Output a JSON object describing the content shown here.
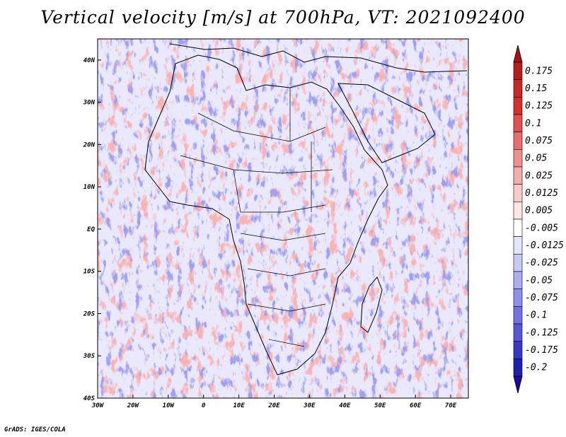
{
  "title": "Vertical velocity [m/s] at 700hPa, VT: 2021092400",
  "credit": "GrADS: IGES/COLA",
  "map": {
    "lon_range": [
      -30,
      75
    ],
    "lat_range": [
      -40,
      45
    ],
    "lon_ticks": [
      {
        "lon": -30,
        "label": "30W"
      },
      {
        "lon": -20,
        "label": "20W"
      },
      {
        "lon": -10,
        "label": "10W"
      },
      {
        "lon": 0,
        "label": "0"
      },
      {
        "lon": 10,
        "label": "10E"
      },
      {
        "lon": 20,
        "label": "20E"
      },
      {
        "lon": 30,
        "label": "30E"
      },
      {
        "lon": 40,
        "label": "40E"
      },
      {
        "lon": 50,
        "label": "50E"
      },
      {
        "lon": 60,
        "label": "60E"
      },
      {
        "lon": 70,
        "label": "70E"
      }
    ],
    "lat_ticks": [
      {
        "lat": 40,
        "label": "40N"
      },
      {
        "lat": 30,
        "label": "30N"
      },
      {
        "lat": 20,
        "label": "20N"
      },
      {
        "lat": 10,
        "label": "10N"
      },
      {
        "lat": 0,
        "label": "EQ"
      },
      {
        "lat": -10,
        "label": "10S"
      },
      {
        "lat": -20,
        "label": "20S"
      },
      {
        "lat": -30,
        "label": "30S"
      },
      {
        "lat": -40,
        "label": "40S"
      }
    ]
  },
  "colorbar": {
    "levels": [
      {
        "label": "0.175",
        "color": "#b71c1c"
      },
      {
        "label": "0.15",
        "color": "#c62828"
      },
      {
        "label": "0.125",
        "color": "#d32f2f"
      },
      {
        "label": "0.1",
        "color": "#e05050"
      },
      {
        "label": "0.075",
        "color": "#e86e6e"
      },
      {
        "label": "0.05",
        "color": "#ef8f8f"
      },
      {
        "label": "0.025",
        "color": "#f4adad"
      },
      {
        "label": "0.0125",
        "color": "#f8caca"
      },
      {
        "label": "0.005",
        "color": "#fce6e6"
      },
      {
        "label": "-0.005",
        "color": "#ffffff"
      },
      {
        "label": "-0.0125",
        "color": "#e4e4fb"
      },
      {
        "label": "-0.025",
        "color": "#c9c9f6"
      },
      {
        "label": "-0.05",
        "color": "#adadf0"
      },
      {
        "label": "-0.075",
        "color": "#9090ea"
      },
      {
        "label": "-0.1",
        "color": "#7373e0"
      },
      {
        "label": "-0.125",
        "color": "#5656d6"
      },
      {
        "label": "-0.175",
        "color": "#3838c8"
      },
      {
        "label": "-0.2",
        "color": "#2020b0"
      }
    ],
    "top_arrow_color": "#a01414",
    "bottom_arrow_color": "#1a0aa0"
  },
  "colors": {
    "up": "#d23c3c",
    "down": "#5050d8",
    "background_field": "#e9e9fb",
    "coastline": "#000000"
  }
}
